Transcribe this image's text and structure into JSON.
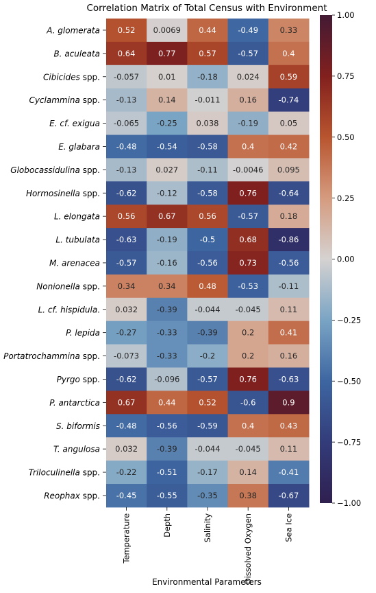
{
  "chart_data": {
    "type": "heatmap",
    "title": "Correlation Matrix of Total Census with Environment",
    "xlabel": "Environmental Parameters",
    "ylabel": "",
    "columns": [
      "Temperature",
      "Depth",
      "Salinity",
      "Dissolved Oxygen",
      "Sea Ice"
    ],
    "rows": [
      {
        "italic": "A. glomerata",
        "suffix": ""
      },
      {
        "italic": "B. aculeata",
        "suffix": ""
      },
      {
        "italic": "Cibicides",
        "suffix": " spp."
      },
      {
        "italic": "Cyclammina",
        "suffix": " spp."
      },
      {
        "italic": "E. cf. exigua",
        "suffix": ""
      },
      {
        "italic": "E. glabara",
        "suffix": ""
      },
      {
        "italic": "Globocassidulina",
        "suffix": " spp."
      },
      {
        "italic": "Hormosinella",
        "suffix": " spp."
      },
      {
        "italic": "L. elongata",
        "suffix": ""
      },
      {
        "italic": "L. tubulata",
        "suffix": ""
      },
      {
        "italic": "M. arenacea",
        "suffix": ""
      },
      {
        "italic": "Nonionella",
        "suffix": " spp."
      },
      {
        "italic": "L. cf. hispidula",
        "suffix": "."
      },
      {
        "italic": "P. lepida",
        "suffix": ""
      },
      {
        "italic": "Portatrochammina",
        "suffix": " spp."
      },
      {
        "italic": "Pyrgo",
        "suffix": " spp."
      },
      {
        "italic": "P. antarctica",
        "suffix": ""
      },
      {
        "italic": "S. biformis",
        "suffix": ""
      },
      {
        "italic": "T. angulosa",
        "suffix": ""
      },
      {
        "italic": "Triloculinella",
        "suffix": " spp."
      },
      {
        "italic": "Reophax",
        "suffix": " spp."
      }
    ],
    "values": [
      [
        0.52,
        0.0069,
        0.44,
        -0.49,
        0.33
      ],
      [
        0.64,
        0.77,
        0.57,
        -0.57,
        0.4
      ],
      [
        -0.057,
        0.01,
        -0.18,
        0.024,
        0.59
      ],
      [
        -0.13,
        0.14,
        -0.011,
        0.16,
        -0.74
      ],
      [
        -0.065,
        -0.25,
        0.038,
        -0.19,
        0.05
      ],
      [
        -0.48,
        -0.54,
        -0.58,
        0.4,
        0.42
      ],
      [
        -0.13,
        0.027,
        -0.11,
        -0.0046,
        0.095
      ],
      [
        -0.62,
        -0.12,
        -0.58,
        0.76,
        -0.64
      ],
      [
        0.56,
        0.67,
        0.56,
        -0.57,
        0.18
      ],
      [
        -0.63,
        -0.19,
        -0.5,
        0.68,
        -0.86
      ],
      [
        -0.57,
        -0.16,
        -0.56,
        0.73,
        -0.56
      ],
      [
        0.34,
        0.34,
        0.48,
        -0.53,
        -0.11
      ],
      [
        0.032,
        -0.39,
        -0.044,
        -0.045,
        0.11
      ],
      [
        -0.27,
        -0.33,
        -0.39,
        0.2,
        0.41
      ],
      [
        -0.073,
        -0.33,
        -0.2,
        0.2,
        0.16
      ],
      [
        -0.62,
        -0.096,
        -0.57,
        0.76,
        -0.63
      ],
      [
        0.67,
        0.44,
        0.52,
        -0.6,
        0.9
      ],
      [
        -0.48,
        -0.56,
        -0.59,
        0.4,
        0.43
      ],
      [
        0.032,
        -0.39,
        -0.044,
        -0.045,
        0.11
      ],
      [
        -0.22,
        -0.51,
        -0.17,
        0.14,
        -0.41
      ],
      [
        -0.45,
        -0.55,
        -0.35,
        0.38,
        -0.67
      ]
    ],
    "colorbar": {
      "range": [
        -1.0,
        1.0
      ],
      "ticks": [
        1.0,
        0.75,
        0.5,
        0.25,
        0.0,
        -0.25,
        -0.5,
        -0.75,
        -1.0
      ],
      "tick_labels": [
        "1.00",
        "0.75",
        "0.50",
        "0.25",
        "0.00",
        "−0.25",
        "−0.50",
        "−0.75",
        "−1.00"
      ],
      "colormap": "diverging blue-grey-red (twilight_shifted-like)",
      "stops": [
        {
          "v": -1.0,
          "color": "#2f1f4f"
        },
        {
          "v": -0.75,
          "color": "#333c7a"
        },
        {
          "v": -0.5,
          "color": "#3d66a1"
        },
        {
          "v": -0.25,
          "color": "#7aa4c4"
        },
        {
          "v": 0.0,
          "color": "#d5d2d1"
        },
        {
          "v": 0.25,
          "color": "#d59b7f"
        },
        {
          "v": 0.5,
          "color": "#b8552f"
        },
        {
          "v": 0.75,
          "color": "#82201e"
        },
        {
          "v": 1.0,
          "color": "#431a34"
        }
      ]
    },
    "grid": false,
    "legend": "colorbar-right"
  }
}
